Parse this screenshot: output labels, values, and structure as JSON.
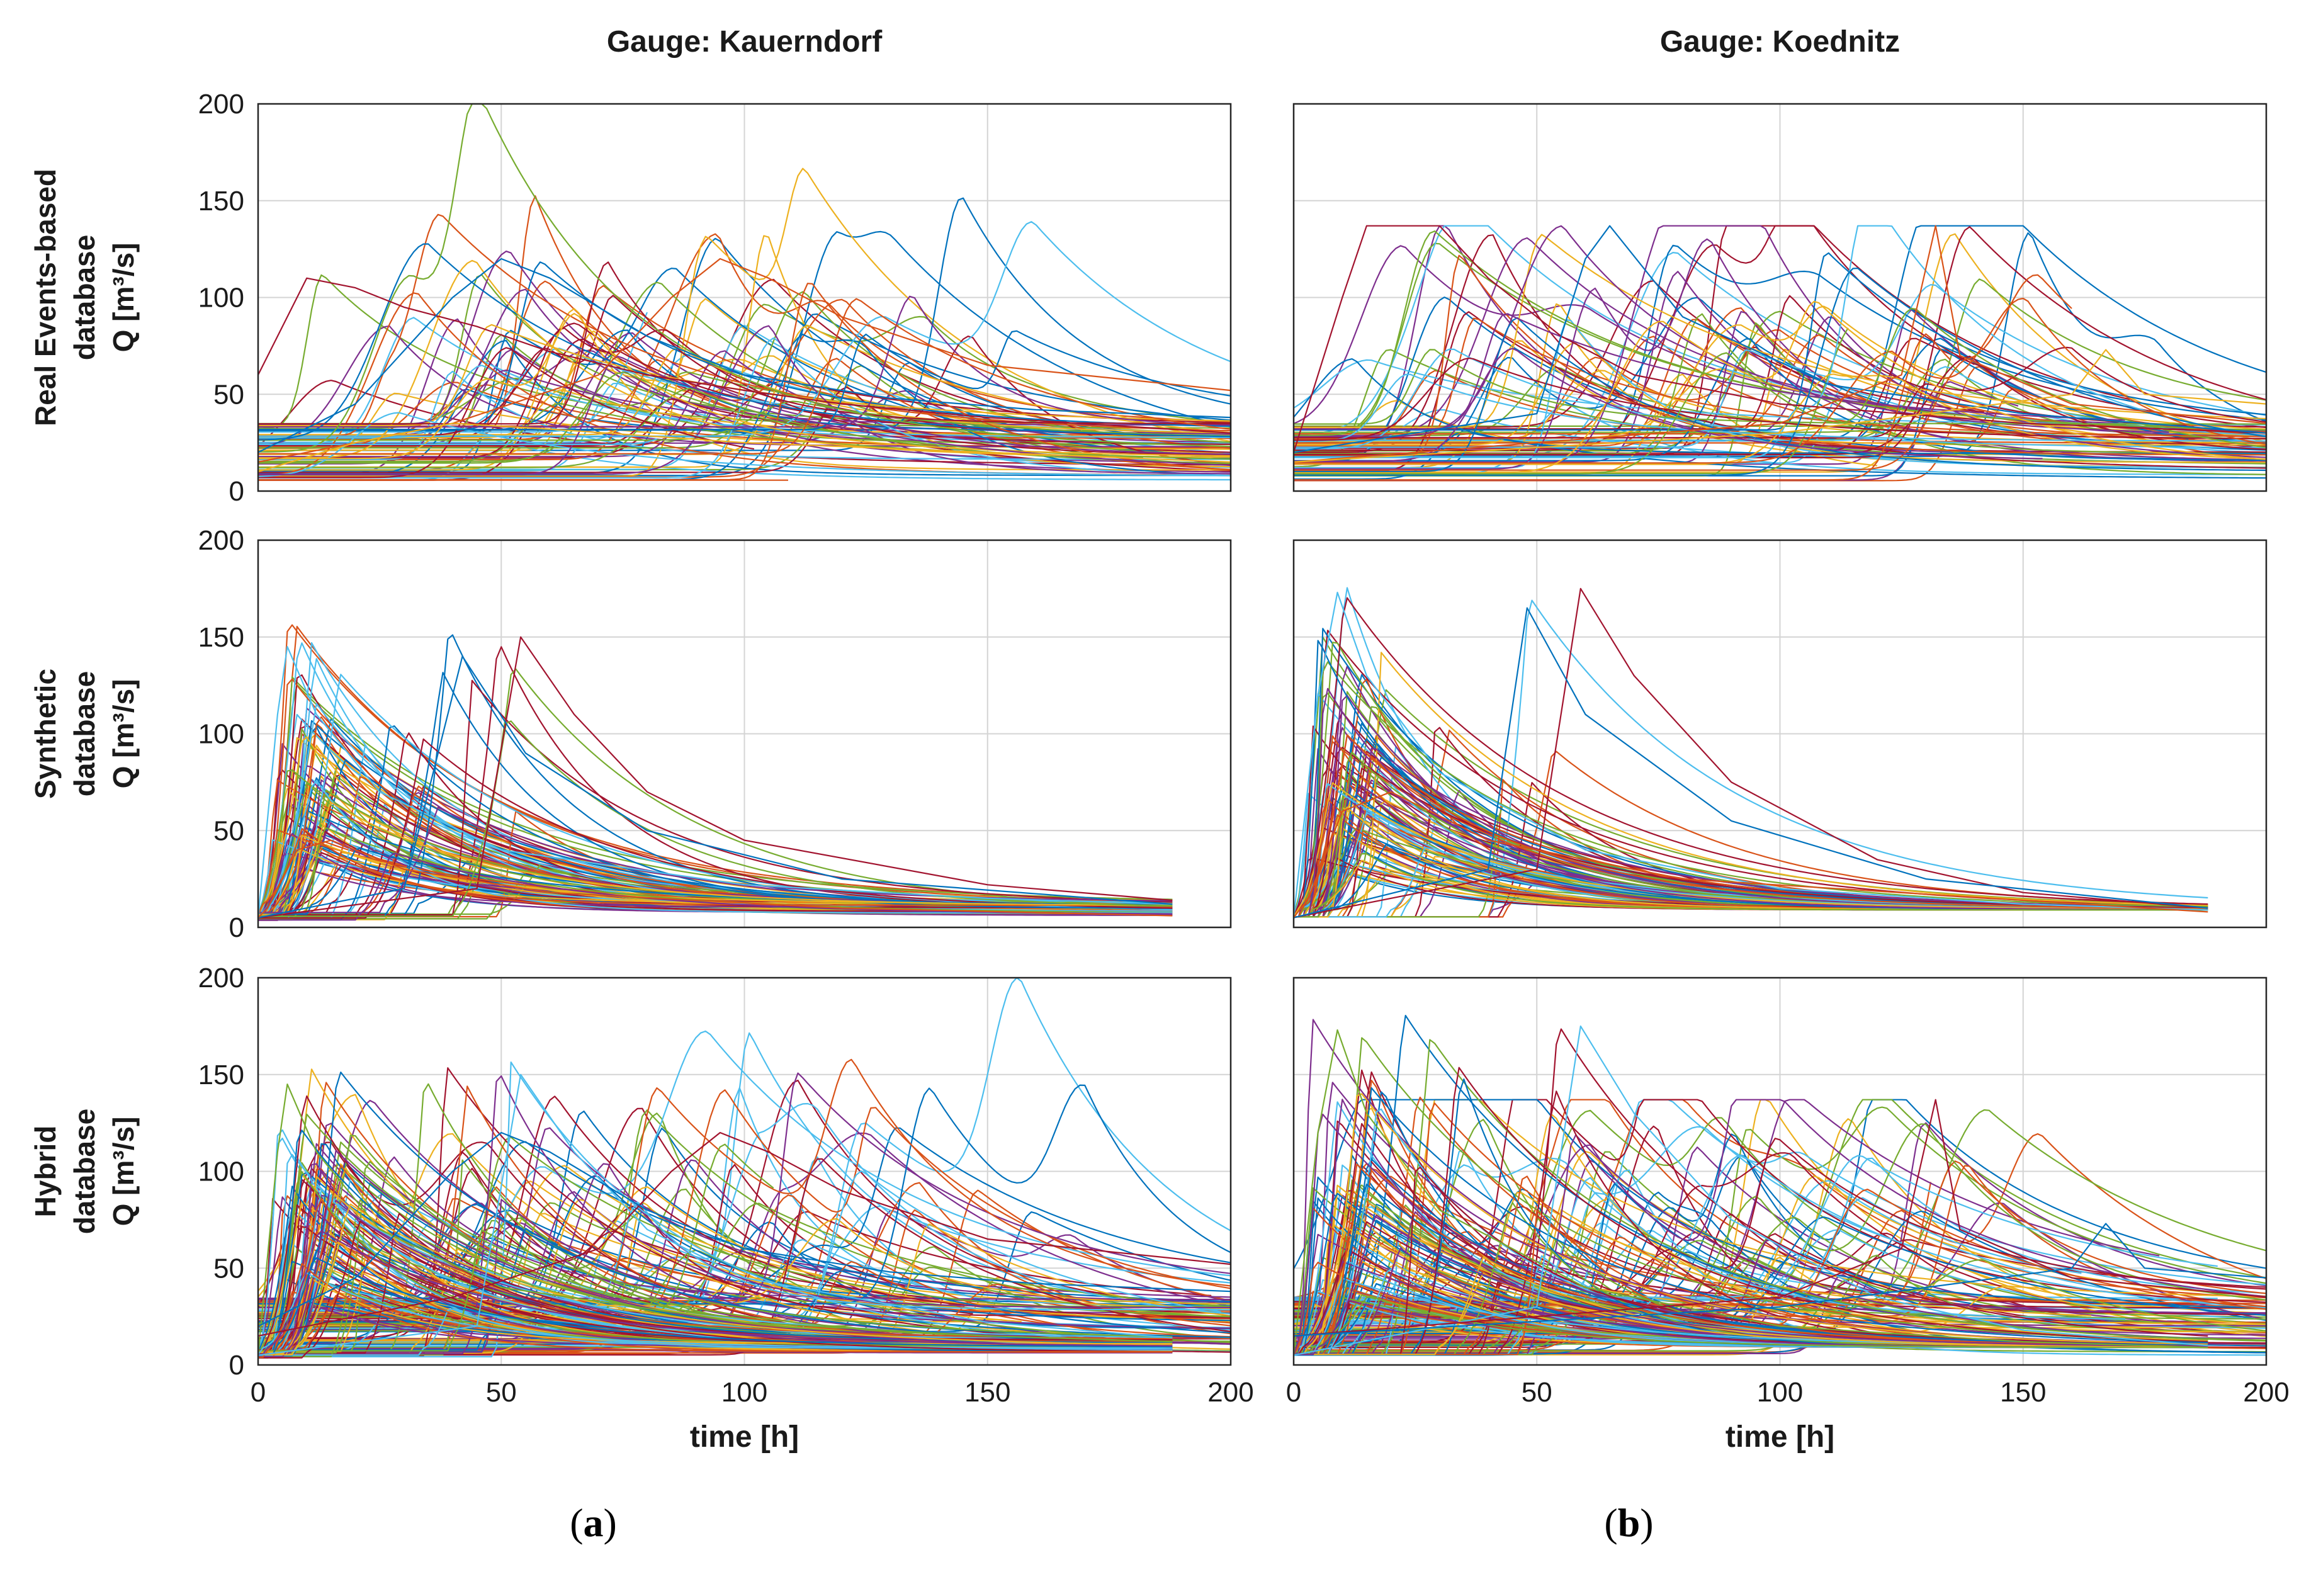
{
  "figure": {
    "columns": [
      {
        "title": "Gauge: Kauerndorf",
        "caption": {
          "open": "(",
          "letter": "a",
          "close": ")"
        }
      },
      {
        "title": "Gauge: Koednitz",
        "caption": {
          "open": "(",
          "letter": "b",
          "close": ")"
        }
      }
    ],
    "rows": [
      {
        "label_lines": [
          "Real Events-based",
          "database",
          "Q [m³/s]"
        ]
      },
      {
        "label_lines": [
          "Synthetic",
          "database",
          "Q [m³/s]"
        ]
      },
      {
        "label_lines": [
          "Hybrid",
          "database",
          "Q [m³/s]"
        ]
      }
    ]
  },
  "chart_data": [
    {
      "type": "line",
      "panel": "a-real",
      "gauge": "Kauerndorf",
      "database": "Real Events-based",
      "xlabel": "",
      "ylabel": "Q [m³/s]",
      "xlim": [
        0,
        200
      ],
      "ylim": [
        0,
        200
      ],
      "xticks": [
        0,
        50,
        100,
        150,
        200
      ],
      "yticks": [
        0,
        50,
        100,
        150,
        200
      ],
      "grid": true,
      "series_description": "many overlapping real flood hydrographs, durations up to 200 h, peaks mostly 40-120 m³/s",
      "representative_series": [
        {
          "x": [
            0,
            10,
            20,
            30,
            45,
            60,
            80,
            100,
            120,
            150,
            200
          ],
          "y": [
            60,
            110,
            105,
            95,
            85,
            72,
            60,
            52,
            45,
            38,
            30
          ]
        },
        {
          "x": [
            0,
            20,
            40,
            50,
            60,
            80,
            100,
            130,
            160,
            200
          ],
          "y": [
            20,
            45,
            100,
            120,
            110,
            80,
            60,
            48,
            42,
            38
          ]
        },
        {
          "x": [
            0,
            40,
            70,
            85,
            95,
            105,
            120,
            150,
            200
          ],
          "y": [
            15,
            35,
            60,
            100,
            120,
            110,
            90,
            65,
            52
          ]
        },
        {
          "x": [
            0,
            20,
            40,
            60,
            100,
            150,
            200
          ],
          "y": [
            10,
            25,
            35,
            32,
            25,
            20,
            15
          ]
        }
      ]
    },
    {
      "type": "line",
      "panel": "b-real",
      "gauge": "Koednitz",
      "database": "Real Events-based",
      "xlabel": "",
      "ylabel": "",
      "xlim": [
        0,
        200
      ],
      "ylim": [
        0,
        200
      ],
      "xticks": [
        0,
        50,
        100,
        150,
        200
      ],
      "yticks": [
        0,
        50,
        100,
        150,
        200
      ],
      "grid": true,
      "series_description": "many real flood hydrographs, peaks clipped near 137 m³/s, isolated spikes near t=132 h and t=167 h",
      "representative_series": [
        {
          "x": [
            0,
            10,
            15,
            30,
            40,
            55,
            70,
            100,
            150,
            200
          ],
          "y": [
            20,
            100,
            137,
            137,
            110,
            80,
            60,
            45,
            35,
            30
          ]
        },
        {
          "x": [
            0,
            50,
            60,
            65,
            80,
            110,
            150,
            200
          ],
          "y": [
            20,
            40,
            120,
            137,
            90,
            55,
            40,
            30
          ]
        },
        {
          "x": [
            0,
            100,
            125,
            132,
            137,
            160,
            200
          ],
          "y": [
            15,
            35,
            60,
            137,
            70,
            45,
            35
          ]
        },
        {
          "x": [
            0,
            100,
            160,
            167,
            175,
            200
          ],
          "y": [
            15,
            30,
            50,
            73,
            50,
            45
          ]
        }
      ]
    },
    {
      "type": "line",
      "panel": "a-synthetic",
      "gauge": "Kauerndorf",
      "database": "Synthetic",
      "xlabel": "",
      "ylabel": "Q [m³/s]",
      "xlim": [
        0,
        200
      ],
      "ylim": [
        0,
        200
      ],
      "xticks": [
        0,
        50,
        100,
        150,
        200
      ],
      "yticks": [
        0,
        50,
        100,
        150,
        200
      ],
      "grid": true,
      "series_description": "synthetic hydrographs with rapid rise and exponential recession, all ending at t≈188 h",
      "representative_series": [
        {
          "x": [
            0,
            4,
            6,
            12,
            25,
            50,
            100,
            150,
            188
          ],
          "y": [
            5,
            110,
            145,
            110,
            70,
            40,
            22,
            15,
            12
          ]
        },
        {
          "x": [
            0,
            45,
            54,
            65,
            80,
            100,
            150,
            188
          ],
          "y": [
            5,
            20,
            150,
            110,
            70,
            45,
            22,
            14
          ]
        },
        {
          "x": [
            0,
            30,
            42,
            55,
            80,
            120,
            188
          ],
          "y": [
            5,
            20,
            140,
            90,
            50,
            25,
            12
          ]
        },
        {
          "x": [
            0,
            2,
            8,
            15,
            30,
            60,
            120,
            188
          ],
          "y": [
            5,
            10,
            40,
            45,
            30,
            18,
            10,
            6
          ]
        }
      ]
    },
    {
      "type": "line",
      "panel": "b-synthetic",
      "gauge": "Koednitz",
      "database": "Synthetic",
      "xlabel": "",
      "ylabel": "",
      "xlim": [
        0,
        200
      ],
      "ylim": [
        0,
        200
      ],
      "xticks": [
        0,
        50,
        100,
        150,
        200
      ],
      "yticks": [
        0,
        50,
        100,
        150,
        200
      ],
      "grid": true,
      "series_description": "synthetic hydrographs, peaks up to 175 m³/s, all ending at t≈188 h",
      "representative_series": [
        {
          "x": [
            0,
            5,
            9,
            15,
            30,
            60,
            100,
            150,
            188
          ],
          "y": [
            5,
            120,
            173,
            130,
            80,
            40,
            20,
            12,
            9
          ]
        },
        {
          "x": [
            0,
            50,
            59,
            70,
            90,
            120,
            150,
            188
          ],
          "y": [
            5,
            30,
            175,
            130,
            75,
            35,
            18,
            10
          ]
        },
        {
          "x": [
            0,
            40,
            48,
            60,
            90,
            130,
            188
          ],
          "y": [
            5,
            30,
            165,
            110,
            55,
            25,
            10
          ]
        },
        {
          "x": [
            0,
            3,
            10,
            20,
            40,
            80,
            188
          ],
          "y": [
            5,
            15,
            60,
            70,
            45,
            25,
            8
          ]
        }
      ]
    },
    {
      "type": "line",
      "panel": "a-hybrid",
      "gauge": "Kauerndorf",
      "database": "Hybrid",
      "xlabel": "time [h]",
      "ylabel": "Q [m³/s]",
      "xlim": [
        0,
        200
      ],
      "ylim": [
        0,
        200
      ],
      "xticks": [
        0,
        50,
        100,
        150,
        200
      ],
      "yticks": [
        0,
        50,
        100,
        150,
        200
      ],
      "grid": true,
      "series_description": "combination of real events-based and synthetic hydrographs",
      "representative_series": [
        {
          "x": [
            0,
            4,
            6,
            12,
            25,
            50,
            100,
            150,
            188
          ],
          "y": [
            5,
            110,
            145,
            110,
            70,
            40,
            22,
            15,
            12
          ]
        },
        {
          "x": [
            0,
            45,
            54,
            65,
            80,
            100,
            150,
            188
          ],
          "y": [
            5,
            20,
            150,
            110,
            70,
            45,
            22,
            14
          ]
        },
        {
          "x": [
            0,
            40,
            70,
            85,
            95,
            105,
            120,
            150,
            200
          ],
          "y": [
            15,
            35,
            60,
            100,
            120,
            110,
            90,
            65,
            52
          ]
        },
        {
          "x": [
            0,
            20,
            40,
            50,
            60,
            80,
            100,
            130,
            160,
            200
          ],
          "y": [
            20,
            45,
            100,
            120,
            110,
            80,
            60,
            48,
            42,
            38
          ]
        }
      ]
    },
    {
      "type": "line",
      "panel": "b-hybrid",
      "gauge": "Koednitz",
      "database": "Hybrid",
      "xlabel": "time [h]",
      "ylabel": "",
      "xlim": [
        0,
        200
      ],
      "ylim": [
        0,
        200
      ],
      "xticks": [
        0,
        50,
        100,
        150,
        200
      ],
      "yticks": [
        0,
        50,
        100,
        150,
        200
      ],
      "grid": true,
      "series_description": "combination of real events-based and synthetic hydrographs",
      "representative_series": [
        {
          "x": [
            0,
            5,
            9,
            15,
            30,
            60,
            100,
            150,
            188
          ],
          "y": [
            5,
            120,
            173,
            130,
            80,
            40,
            20,
            12,
            9
          ]
        },
        {
          "x": [
            0,
            50,
            59,
            70,
            90,
            120,
            150,
            188
          ],
          "y": [
            5,
            30,
            175,
            130,
            75,
            35,
            18,
            10
          ]
        },
        {
          "x": [
            0,
            100,
            125,
            132,
            137,
            160,
            200
          ],
          "y": [
            15,
            35,
            60,
            137,
            70,
            45,
            35
          ]
        },
        {
          "x": [
            0,
            100,
            160,
            167,
            175,
            200
          ],
          "y": [
            15,
            30,
            50,
            73,
            50,
            45
          ]
        }
      ]
    }
  ]
}
